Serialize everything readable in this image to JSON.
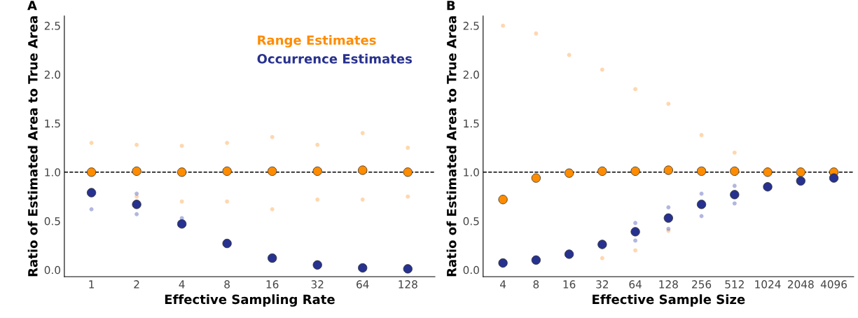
{
  "chart_data": [
    {
      "type": "scatter",
      "title": "A",
      "xlabel": "Effective Sampling Rate",
      "ylabel": "Ratio of Estimated Area to True Area",
      "categories": [
        "1",
        "2",
        "4",
        "8",
        "16",
        "32",
        "64",
        "128"
      ],
      "ylim": [
        -0.07,
        2.6
      ],
      "yticks": [
        {
          "value": 0,
          "label": "0.0"
        },
        {
          "value": 0.5,
          "label": "0.5"
        },
        {
          "value": 1,
          "label": "1.0"
        },
        {
          "value": 1.5,
          "label": "1.5"
        },
        {
          "value": 2,
          "label": "2.0"
        },
        {
          "value": 2.5,
          "label": "2.5"
        }
      ],
      "grid": false,
      "legend": "top right",
      "marker": "circle",
      "ref_lines": [
        {
          "axis": "y",
          "value": 1,
          "color": "#000000",
          "line_style": "dashed"
        }
      ],
      "series": [
        {
          "color": "#ffa64d",
          "x": [
            "1",
            "2",
            "2",
            "4",
            "4",
            "8",
            "8",
            "16",
            "16",
            "32",
            "32",
            "64",
            "64",
            "128",
            "128"
          ],
          "values": [
            1.3,
            0.75,
            1.28,
            0.7,
            1.27,
            0.7,
            1.3,
            0.62,
            1.36,
            0.72,
            1.28,
            0.72,
            1.4,
            0.75,
            1.25
          ]
        },
        {
          "color": "#5560b8",
          "x": [
            "1",
            "2",
            "2",
            "4"
          ],
          "values": [
            0.62,
            0.57,
            0.78,
            0.53
          ]
        },
        {
          "name": "Range Estimates",
          "color": "#ff8c00",
          "values": [
            1.0,
            1.01,
            1.0,
            1.01,
            1.01,
            1.01,
            1.02,
            1.0
          ]
        },
        {
          "name": "Occurrence Estimates",
          "color": "#27318f",
          "values": [
            0.79,
            0.67,
            0.47,
            0.27,
            0.12,
            0.05,
            0.02,
            0.01
          ]
        }
      ]
    },
    {
      "type": "scatter",
      "title": "B",
      "xlabel": "Effective Sample Size",
      "ylabel": "Ratio of Estimated Area to True Area",
      "categories": [
        "4",
        "8",
        "16",
        "32",
        "64",
        "128",
        "256",
        "512",
        "1024",
        "2048",
        "4096"
      ],
      "ylim": [
        -0.07,
        2.6
      ],
      "yticks": [
        {
          "value": 0,
          "label": "0.0"
        },
        {
          "value": 0.5,
          "label": "0.5"
        },
        {
          "value": 1,
          "label": "1.0"
        },
        {
          "value": 1.5,
          "label": "1.5"
        },
        {
          "value": 2,
          "label": "2.0"
        },
        {
          "value": 2.5,
          "label": "2.5"
        }
      ],
      "grid": false,
      "marker": "circle",
      "ref_lines": [
        {
          "axis": "y",
          "value": 1,
          "color": "#000000",
          "line_style": "dashed"
        }
      ],
      "series": [
        {
          "color": "#ffa64d",
          "x": [
            "4",
            "8",
            "16",
            "32",
            "32",
            "64",
            "64",
            "128",
            "128",
            "256",
            "512"
          ],
          "values": [
            2.5,
            2.42,
            2.2,
            0.12,
            2.05,
            0.2,
            1.85,
            0.4,
            1.7,
            1.38,
            1.2
          ]
        },
        {
          "color": "#5560b8",
          "x": [
            "64",
            "64",
            "128",
            "128",
            "256",
            "256",
            "512",
            "512"
          ],
          "values": [
            0.3,
            0.48,
            0.42,
            0.64,
            0.55,
            0.78,
            0.68,
            0.86
          ]
        },
        {
          "color": "#ff8c00",
          "values": [
            0.72,
            0.94,
            0.99,
            1.01,
            1.01,
            1.02,
            1.01,
            1.01,
            1.0,
            1.0,
            1.0
          ]
        },
        {
          "color": "#27318f",
          "values": [
            0.07,
            0.1,
            0.16,
            0.26,
            0.39,
            0.53,
            0.67,
            0.77,
            0.85,
            0.91,
            0.94
          ]
        }
      ]
    }
  ]
}
